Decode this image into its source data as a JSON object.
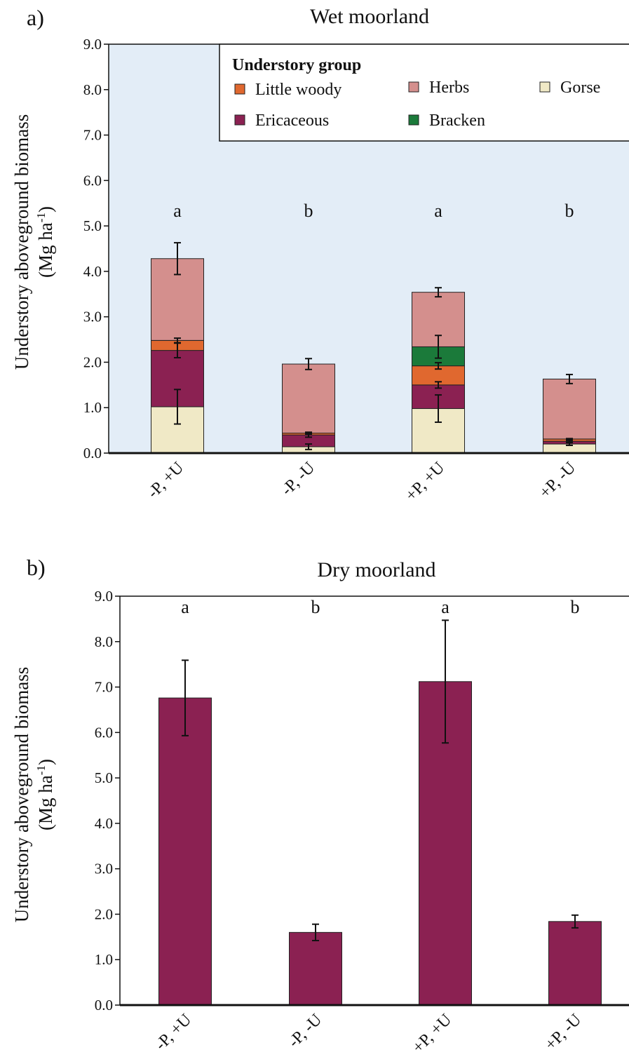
{
  "chart_data": [
    {
      "panel_label": "a)",
      "title": "Wet moorland",
      "type": "stacked-bar",
      "ylabel_line1": "Understory aboveground biomass",
      "ylabel_line2": "(Mg ha",
      "ylabel_sup": "-1",
      "ylabel_end": ")",
      "ylim": [
        0,
        9
      ],
      "yticks": [
        "0.0",
        "1.0",
        "2.0",
        "3.0",
        "4.0",
        "5.0",
        "6.0",
        "7.0",
        "8.0",
        "9.0"
      ],
      "plot_background": "#e3edf7",
      "categories": [
        "-P, +U",
        "-P, -U",
        "+P, +U",
        "+P, -U"
      ],
      "letters": [
        "a",
        "b",
        "a",
        "b"
      ],
      "legend": {
        "title": "Understory group",
        "placement": "top-right",
        "items": [
          "Little woody",
          "Herbs",
          "Gorse",
          "Ericaceous",
          "Bracken"
        ]
      },
      "series": [
        {
          "name": "Gorse",
          "color": "#f0e9c6",
          "values": [
            1.02,
            0.14,
            0.98,
            0.2
          ],
          "err": [
            0.38,
            0.06,
            0.3,
            0.03
          ]
        },
        {
          "name": "Ericaceous",
          "color": "#8b2152",
          "values": [
            1.24,
            0.26,
            0.52,
            0.06
          ],
          "err": [
            0.16,
            0.05,
            0.07,
            0.02
          ]
        },
        {
          "name": "Little woody",
          "color": "#e0682f",
          "values": [
            0.22,
            0.04,
            0.42,
            0.05
          ],
          "err": [
            0.05,
            0.02,
            0.07,
            0.01
          ]
        },
        {
          "name": "Bracken",
          "color": "#1b7a3a",
          "values": [
            0,
            0,
            0.42,
            0
          ],
          "err": [
            0,
            0,
            0.25,
            0
          ]
        },
        {
          "name": "Herbs",
          "color": "#d48f8d",
          "values": [
            1.8,
            1.52,
            1.2,
            1.32
          ],
          "err": [
            0.35,
            0.12,
            0.1,
            0.1
          ]
        }
      ]
    },
    {
      "panel_label": "b)",
      "title": "Dry moorland",
      "type": "bar",
      "ylabel_line1": "Understory aboveground biomass",
      "ylabel_line2": "(Mg ha",
      "ylabel_sup": "-1",
      "ylabel_end": ")",
      "ylim": [
        0,
        9
      ],
      "yticks": [
        "0.0",
        "1.0",
        "2.0",
        "3.0",
        "4.0",
        "5.0",
        "6.0",
        "7.0",
        "8.0",
        "9.0"
      ],
      "plot_background": "#ffffff",
      "categories": [
        "-P, +U",
        "-P, -U",
        "+P, +U",
        "+P, -U"
      ],
      "letters": [
        "a",
        "b",
        "a",
        "b"
      ],
      "series": [
        {
          "name": "Ericaceous",
          "color": "#8b2152",
          "values": [
            6.76,
            1.6,
            7.12,
            1.84
          ],
          "err": [
            0.83,
            0.18,
            1.35,
            0.14
          ]
        }
      ]
    }
  ]
}
